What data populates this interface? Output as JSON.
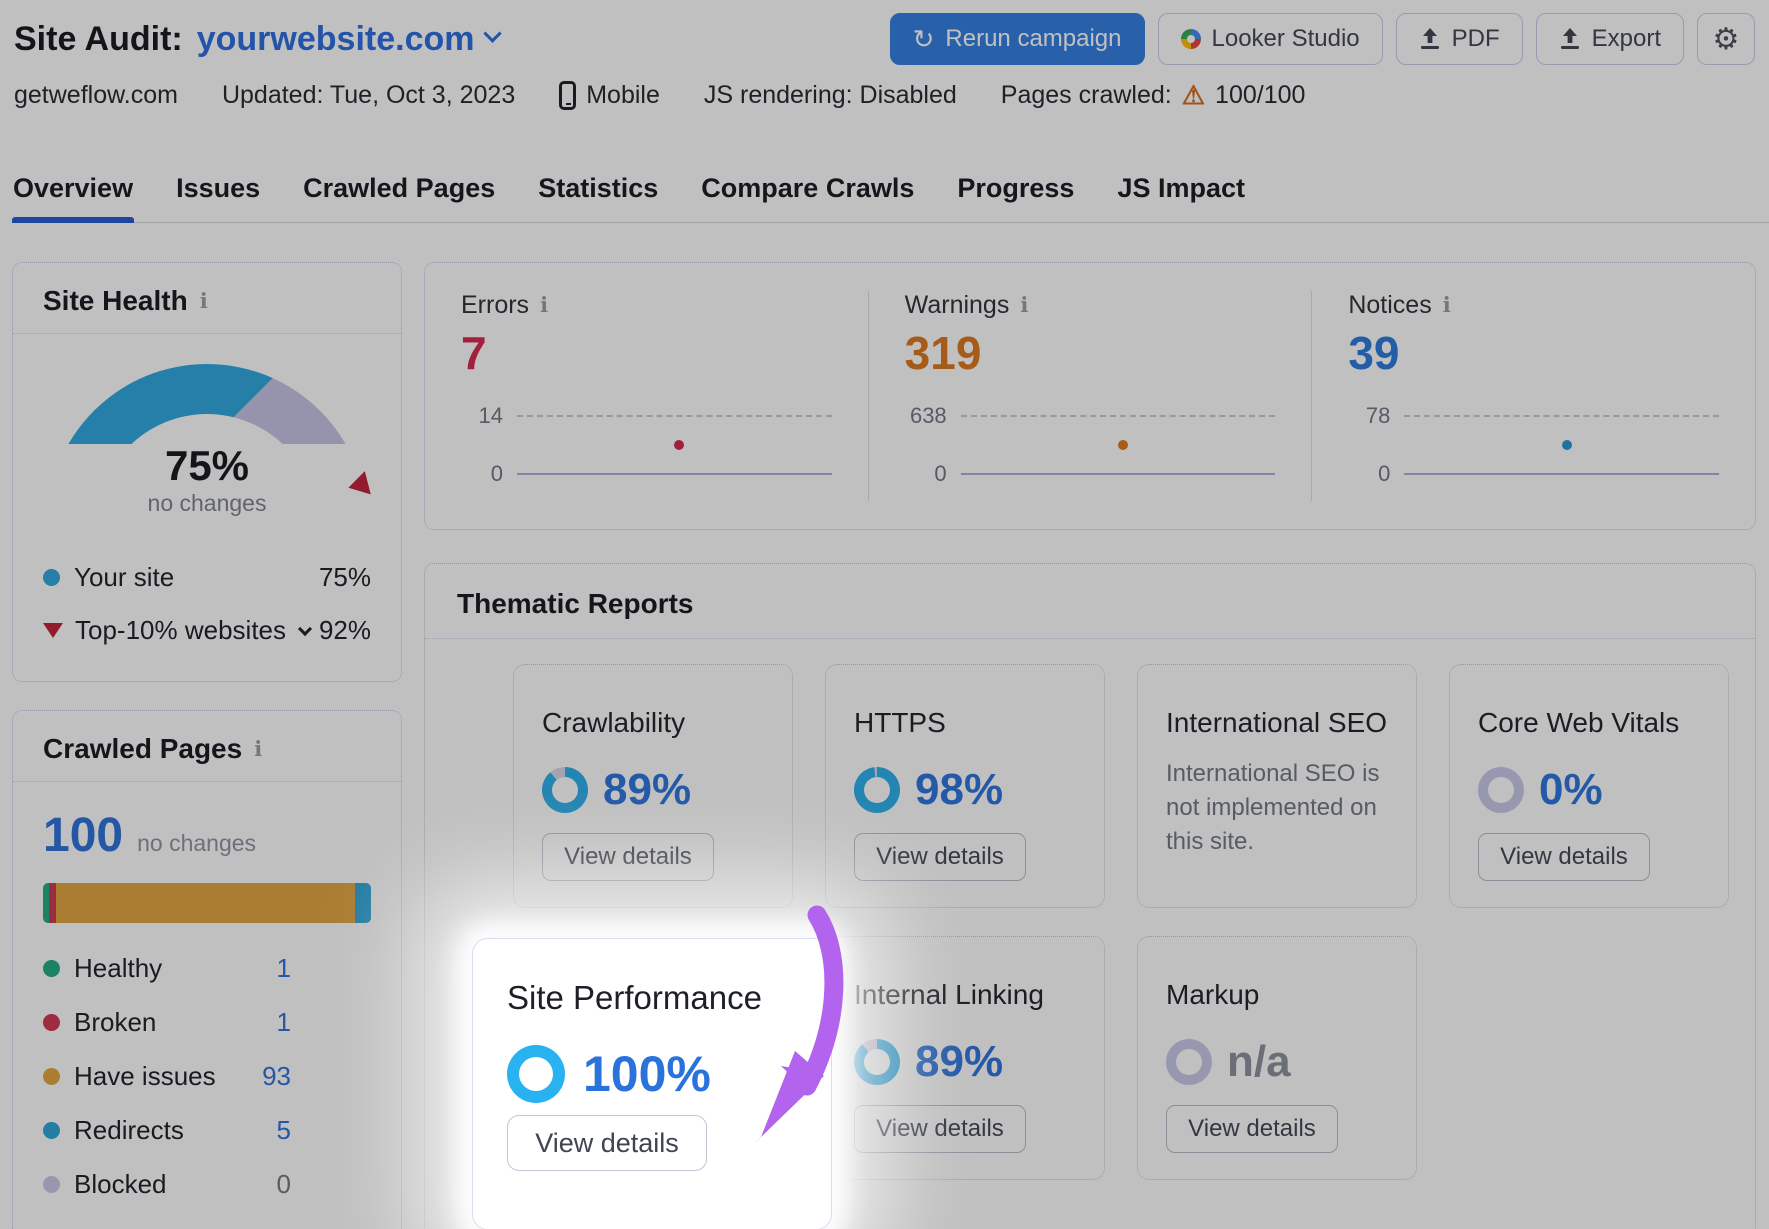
{
  "header": {
    "title": "Site Audit:",
    "domain": "yourwebsite.com",
    "actions": {
      "rerun": "Rerun campaign",
      "looker": "Looker Studio",
      "pdf": "PDF",
      "export": "Export"
    },
    "meta": {
      "site": "getweflow.com",
      "updated": "Updated: Tue, Oct 3, 2023",
      "device": "Mobile",
      "js_rendering": "JS rendering: Disabled",
      "pages_crawled_label": "Pages crawled:",
      "pages_crawled_value": "100/100"
    }
  },
  "tabs": [
    "Overview",
    "Issues",
    "Crawled Pages",
    "Statistics",
    "Compare Crawls",
    "Progress",
    "JS Impact"
  ],
  "site_health": {
    "title": "Site Health",
    "score": "75%",
    "change": "no changes",
    "gauge": {
      "percent": 75,
      "benchmark": 92
    },
    "legend": [
      {
        "label": "Your site",
        "value": "75%"
      },
      {
        "label": "Top-10% websites",
        "value": "92%"
      }
    ]
  },
  "stats": {
    "errors": {
      "label": "Errors",
      "value": "7",
      "max": "14",
      "min": "0"
    },
    "warnings": {
      "label": "Warnings",
      "value": "319",
      "max": "638",
      "min": "0"
    },
    "notices": {
      "label": "Notices",
      "value": "39",
      "max": "78",
      "min": "0"
    }
  },
  "crawled_pages": {
    "title": "Crawled Pages",
    "total": "100",
    "change": "no changes",
    "items": [
      {
        "label": "Healthy",
        "value": 1,
        "display": "1",
        "color": "#1dab80",
        "link": true
      },
      {
        "label": "Broken",
        "value": 1,
        "display": "1",
        "color": "#cf3450",
        "link": true
      },
      {
        "label": "Have issues",
        "value": 93,
        "display": "93",
        "color": "#e2a33c",
        "link": true
      },
      {
        "label": "Redirects",
        "value": 5,
        "display": "5",
        "color": "#2da3d8",
        "link": true
      },
      {
        "label": "Blocked",
        "value": 0,
        "display": "0",
        "color": "#c9c7e6",
        "link": false
      }
    ]
  },
  "thematic": {
    "title": "Thematic Reports",
    "view_details": "View details",
    "cards": {
      "crawlability": {
        "title": "Crawlability",
        "percent": 89,
        "display": "89%",
        "ring": "blue"
      },
      "https": {
        "title": "HTTPS",
        "percent": 98,
        "display": "98%",
        "ring": "blue"
      },
      "international_seo": {
        "title": "International SEO",
        "text": "International SEO is not implemented on this site."
      },
      "core_web_vitals": {
        "title": "Core Web Vitals",
        "percent": 0,
        "display": "0%",
        "ring": "lavender"
      },
      "site_performance": {
        "title": "Site Performance",
        "percent": 100,
        "display": "100%",
        "ring": "bright"
      },
      "internal_linking": {
        "title": "Internal Linking",
        "percent": 89,
        "display": "89%",
        "ring": "blue"
      },
      "markup": {
        "title": "Markup",
        "percent": null,
        "display": "n/a",
        "ring": "lavender"
      }
    }
  },
  "colors": {
    "accent_blue": "#2a72dc",
    "gauge_blue": "#2ba7dd",
    "gauge_lavender": "#c6c3e2",
    "benchmark_red": "#c11f33",
    "ring_blue": "#29aeeb",
    "ring_bright": "#29b2f0",
    "ring_track": "#d9d9e6",
    "ring_lavender": "#c9c7e8",
    "errors_red": "#d6234c",
    "warnings_orange": "#dd7519",
    "notices_blue": "#2a78dc",
    "arrow_purple": "#b264ee"
  }
}
